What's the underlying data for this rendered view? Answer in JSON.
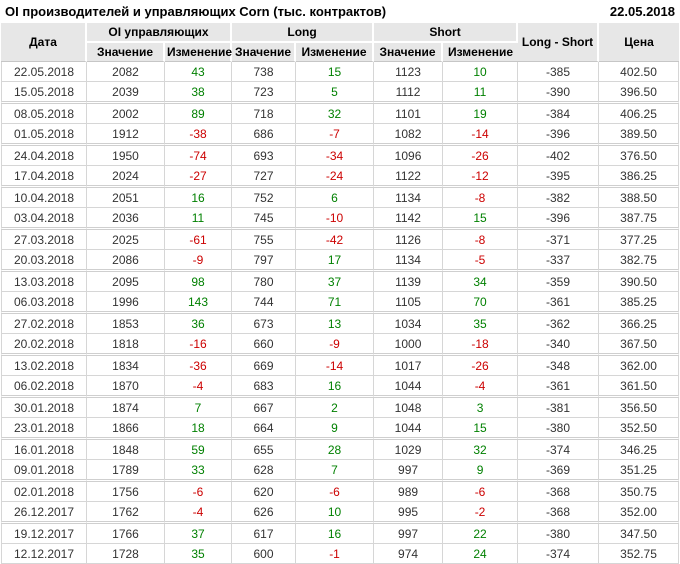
{
  "page": {
    "title": "OI производителей и управляющих Corn (тыс. контрактов)",
    "report_date": "22.05.2018"
  },
  "colors": {
    "positive": "#008000",
    "negative": "#cc0000",
    "header_bg": "#e7e7e7",
    "grid_border": "#d6d6d6",
    "text": "#333333"
  },
  "table": {
    "headers": {
      "date": "Дата",
      "oi_group": "OI управляющих",
      "long_group": "Long",
      "short_group": "Short",
      "value": "Значение",
      "change": "Изменение",
      "long_short": "Long - Short",
      "price": "Цена"
    },
    "rows": [
      {
        "date": "22.05.2018",
        "oi_value": 2082,
        "oi_change": 43,
        "long_value": 738,
        "long_change": 15,
        "short_value": 1123,
        "short_change": 10,
        "long_short": -385,
        "price": "402.50"
      },
      {
        "date": "15.05.2018",
        "oi_value": 2039,
        "oi_change": 38,
        "long_value": 723,
        "long_change": 5,
        "short_value": 1112,
        "short_change": 11,
        "long_short": -390,
        "price": "396.50"
      },
      {
        "date": "08.05.2018",
        "oi_value": 2002,
        "oi_change": 89,
        "long_value": 718,
        "long_change": 32,
        "short_value": 1101,
        "short_change": 19,
        "long_short": -384,
        "price": "406.25"
      },
      {
        "date": "01.05.2018",
        "oi_value": 1912,
        "oi_change": -38,
        "long_value": 686,
        "long_change": -7,
        "short_value": 1082,
        "short_change": -14,
        "long_short": -396,
        "price": "389.50"
      },
      {
        "date": "24.04.2018",
        "oi_value": 1950,
        "oi_change": -74,
        "long_value": 693,
        "long_change": -34,
        "short_value": 1096,
        "short_change": -26,
        "long_short": -402,
        "price": "376.50"
      },
      {
        "date": "17.04.2018",
        "oi_value": 2024,
        "oi_change": -27,
        "long_value": 727,
        "long_change": -24,
        "short_value": 1122,
        "short_change": -12,
        "long_short": -395,
        "price": "386.25"
      },
      {
        "date": "10.04.2018",
        "oi_value": 2051,
        "oi_change": 16,
        "long_value": 752,
        "long_change": 6,
        "short_value": 1134,
        "short_change": -8,
        "long_short": -382,
        "price": "388.50"
      },
      {
        "date": "03.04.2018",
        "oi_value": 2036,
        "oi_change": 11,
        "long_value": 745,
        "long_change": -10,
        "short_value": 1142,
        "short_change": 15,
        "long_short": -396,
        "price": "387.75"
      },
      {
        "date": "27.03.2018",
        "oi_value": 2025,
        "oi_change": -61,
        "long_value": 755,
        "long_change": -42,
        "short_value": 1126,
        "short_change": -8,
        "long_short": -371,
        "price": "377.25"
      },
      {
        "date": "20.03.2018",
        "oi_value": 2086,
        "oi_change": -9,
        "long_value": 797,
        "long_change": 17,
        "short_value": 1134,
        "short_change": -5,
        "long_short": -337,
        "price": "382.75"
      },
      {
        "date": "13.03.2018",
        "oi_value": 2095,
        "oi_change": 98,
        "long_value": 780,
        "long_change": 37,
        "short_value": 1139,
        "short_change": 34,
        "long_short": -359,
        "price": "390.50"
      },
      {
        "date": "06.03.2018",
        "oi_value": 1996,
        "oi_change": 143,
        "long_value": 744,
        "long_change": 71,
        "short_value": 1105,
        "short_change": 70,
        "long_short": -361,
        "price": "385.25"
      },
      {
        "date": "27.02.2018",
        "oi_value": 1853,
        "oi_change": 36,
        "long_value": 673,
        "long_change": 13,
        "short_value": 1034,
        "short_change": 35,
        "long_short": -362,
        "price": "366.25"
      },
      {
        "date": "20.02.2018",
        "oi_value": 1818,
        "oi_change": -16,
        "long_value": 660,
        "long_change": -9,
        "short_value": 1000,
        "short_change": -18,
        "long_short": -340,
        "price": "367.50"
      },
      {
        "date": "13.02.2018",
        "oi_value": 1834,
        "oi_change": -36,
        "long_value": 669,
        "long_change": -14,
        "short_value": 1017,
        "short_change": -26,
        "long_short": -348,
        "price": "362.00"
      },
      {
        "date": "06.02.2018",
        "oi_value": 1870,
        "oi_change": -4,
        "long_value": 683,
        "long_change": 16,
        "short_value": 1044,
        "short_change": -4,
        "long_short": -361,
        "price": "361.50"
      },
      {
        "date": "30.01.2018",
        "oi_value": 1874,
        "oi_change": 7,
        "long_value": 667,
        "long_change": 2,
        "short_value": 1048,
        "short_change": 3,
        "long_short": -381,
        "price": "356.50"
      },
      {
        "date": "23.01.2018",
        "oi_value": 1866,
        "oi_change": 18,
        "long_value": 664,
        "long_change": 9,
        "short_value": 1044,
        "short_change": 15,
        "long_short": -380,
        "price": "352.50"
      },
      {
        "date": "16.01.2018",
        "oi_value": 1848,
        "oi_change": 59,
        "long_value": 655,
        "long_change": 28,
        "short_value": 1029,
        "short_change": 32,
        "long_short": -374,
        "price": "346.25"
      },
      {
        "date": "09.01.2018",
        "oi_value": 1789,
        "oi_change": 33,
        "long_value": 628,
        "long_change": 7,
        "short_value": 997,
        "short_change": 9,
        "long_short": -369,
        "price": "351.25"
      },
      {
        "date": "02.01.2018",
        "oi_value": 1756,
        "oi_change": -6,
        "long_value": 620,
        "long_change": -6,
        "short_value": 989,
        "short_change": -6,
        "long_short": -368,
        "price": "350.75"
      },
      {
        "date": "26.12.2017",
        "oi_value": 1762,
        "oi_change": -4,
        "long_value": 626,
        "long_change": 10,
        "short_value": 995,
        "short_change": -2,
        "long_short": -368,
        "price": "352.00"
      },
      {
        "date": "19.12.2017",
        "oi_value": 1766,
        "oi_change": 37,
        "long_value": 617,
        "long_change": 16,
        "short_value": 997,
        "short_change": 22,
        "long_short": -380,
        "price": "347.50"
      },
      {
        "date": "12.12.2017",
        "oi_value": 1728,
        "oi_change": 35,
        "long_value": 600,
        "long_change": -1,
        "short_value": 974,
        "short_change": 24,
        "long_short": -374,
        "price": "352.75"
      }
    ]
  }
}
